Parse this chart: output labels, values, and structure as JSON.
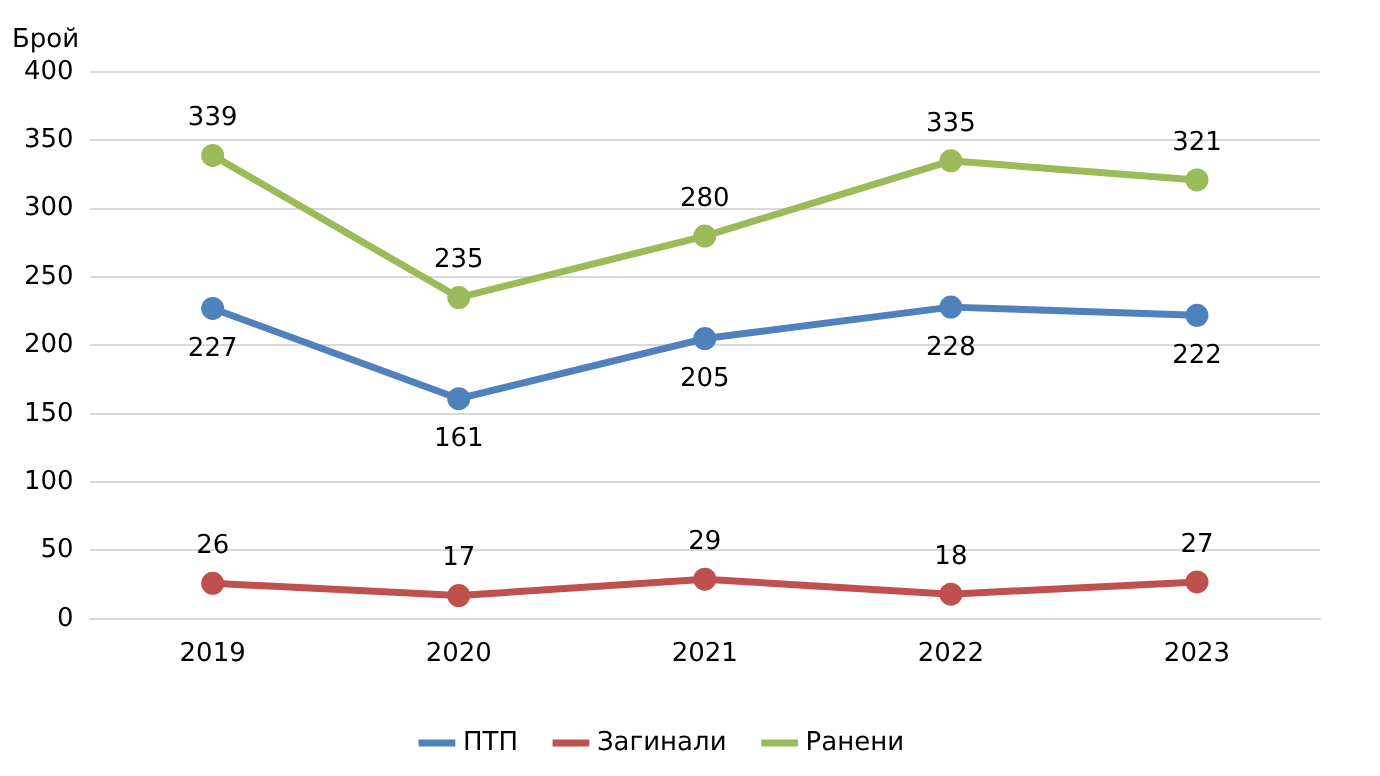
{
  "chart_data": {
    "type": "line",
    "ylabel": "Брой",
    "categories": [
      "2019",
      "2020",
      "2021",
      "2022",
      "2023"
    ],
    "series": [
      {
        "name": "ПТП",
        "color": "#4f81bd",
        "values": [
          227,
          161,
          205,
          228,
          222
        ]
      },
      {
        "name": "Загинали",
        "color": "#c0504d",
        "values": [
          26,
          17,
          29,
          18,
          27
        ]
      },
      {
        "name": "Ранени",
        "color": "#9bbb59",
        "values": [
          339,
          235,
          280,
          335,
          321
        ]
      }
    ],
    "ylim": [
      0,
      400
    ],
    "yticks": [
      0,
      50,
      100,
      150,
      200,
      250,
      300,
      350,
      400
    ],
    "grid": "y",
    "legend": "bottom",
    "marker": "circle",
    "line_style": "solid",
    "data_labels": true
  }
}
